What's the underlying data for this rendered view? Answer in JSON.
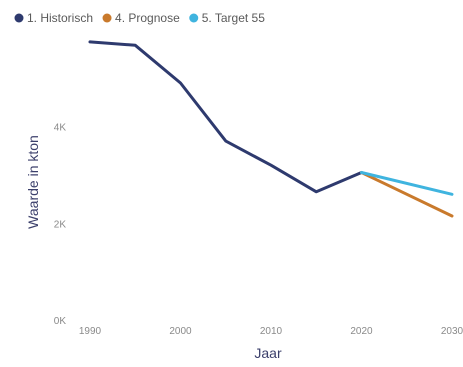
{
  "chart_data": {
    "type": "line",
    "title": "",
    "xlabel": "Jaar",
    "ylabel": "Waarde in kton",
    "x_ticks": [
      1990,
      2000,
      2010,
      2020,
      2030
    ],
    "x_tick_labels": [
      "1990",
      "2000",
      "2010",
      "2020",
      "2030"
    ],
    "y_ticks": [
      0,
      2000,
      4000
    ],
    "y_tick_labels": [
      "0K",
      "2K",
      "4K"
    ],
    "xlim": [
      1990,
      2030
    ],
    "ylim": [
      0,
      6100
    ],
    "grid": false,
    "legend_position": "top-left",
    "series": [
      {
        "name": "1. Historisch",
        "color": "#2e3a6e",
        "x": [
          1990,
          1995,
          2000,
          2005,
          2010,
          2015,
          2020
        ],
        "y": [
          5750,
          5680,
          4900,
          3700,
          3200,
          2650,
          3050
        ]
      },
      {
        "name": "4. Prognose",
        "color": "#c97a2c",
        "x": [
          2020,
          2030
        ],
        "y": [
          3050,
          2150
        ]
      },
      {
        "name": "5. Target 55",
        "color": "#3fb4df",
        "x": [
          2020,
          2030
        ],
        "y": [
          3050,
          2600
        ]
      }
    ]
  }
}
